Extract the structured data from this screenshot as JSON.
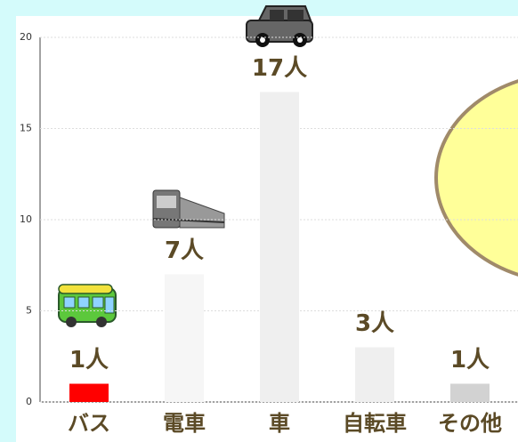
{
  "chart_data": {
    "type": "bar",
    "categories": [
      "バス",
      "電車",
      "車",
      "自転車",
      "その他"
    ],
    "values": [
      1,
      7,
      17,
      3,
      1
    ],
    "value_labels": [
      "1人",
      "7人",
      "17人",
      "3人",
      "1人"
    ],
    "colors": [
      "#ff0000",
      "#f6f6f6",
      "#efefef",
      "#efefef",
      "#d2d2d2"
    ],
    "ylim": [
      0,
      20
    ],
    "yticks": [
      0,
      5,
      10,
      15,
      20
    ],
    "grid": true
  }
}
